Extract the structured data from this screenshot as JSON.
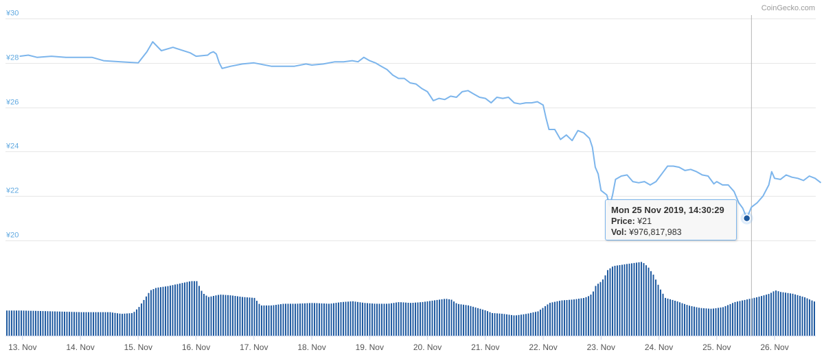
{
  "credit": "CoinGecko.com",
  "colors": {
    "line": "#7cb5ec",
    "volume": "#1f5aa0",
    "grid": "#e6e6e6",
    "y_tick_text": "#5fa8e0",
    "x_tick_text": "#555555",
    "marker": "#1f5aa0"
  },
  "tooltip": {
    "header": "Mon 25 Nov 2019, 14:30:29",
    "price_label": "Price:",
    "price_value": "¥21",
    "vol_label": "Vol:",
    "vol_value": "¥976,817,983"
  },
  "chart_data": {
    "type": "line",
    "title": "",
    "xlabel": "",
    "ylabel": "",
    "y_ticks": [
      "¥20",
      "¥22",
      "¥24",
      "¥26",
      "¥28",
      "¥30"
    ],
    "y_tick_values": [
      20,
      22,
      24,
      26,
      28,
      30
    ],
    "ylim": [
      20,
      30
    ],
    "x_ticks": [
      "13. Nov",
      "14. Nov",
      "15. Nov",
      "16. Nov",
      "17. Nov",
      "18. Nov",
      "19. Nov",
      "20. Nov",
      "21. Nov",
      "22. Nov",
      "23. Nov",
      "24. Nov",
      "25. Nov",
      "26. Nov"
    ],
    "xlim": [
      -0.05,
      13.8
    ],
    "grid": true,
    "price_series": [
      [
        -0.05,
        28.3
      ],
      [
        0.1,
        28.35
      ],
      [
        0.25,
        28.25
      ],
      [
        0.5,
        28.3
      ],
      [
        0.75,
        28.25
      ],
      [
        1.0,
        28.25
      ],
      [
        1.2,
        28.25
      ],
      [
        1.4,
        28.1
      ],
      [
        1.7,
        28.05
      ],
      [
        2.0,
        28.0
      ],
      [
        2.15,
        28.5
      ],
      [
        2.25,
        28.95
      ],
      [
        2.4,
        28.55
      ],
      [
        2.6,
        28.7
      ],
      [
        2.9,
        28.45
      ],
      [
        3.0,
        28.3
      ],
      [
        3.2,
        28.35
      ],
      [
        3.25,
        28.45
      ],
      [
        3.3,
        28.5
      ],
      [
        3.35,
        28.4
      ],
      [
        3.4,
        28.0
      ],
      [
        3.45,
        27.75
      ],
      [
        3.6,
        27.85
      ],
      [
        3.8,
        27.95
      ],
      [
        4.0,
        28.0
      ],
      [
        4.3,
        27.85
      ],
      [
        4.5,
        27.85
      ],
      [
        4.7,
        27.85
      ],
      [
        4.9,
        27.95
      ],
      [
        5.0,
        27.9
      ],
      [
        5.2,
        27.95
      ],
      [
        5.4,
        28.05
      ],
      [
        5.55,
        28.05
      ],
      [
        5.7,
        28.1
      ],
      [
        5.8,
        28.05
      ],
      [
        5.9,
        28.25
      ],
      [
        6.0,
        28.1
      ],
      [
        6.1,
        28.0
      ],
      [
        6.2,
        27.85
      ],
      [
        6.3,
        27.7
      ],
      [
        6.4,
        27.45
      ],
      [
        6.5,
        27.3
      ],
      [
        6.6,
        27.3
      ],
      [
        6.7,
        27.1
      ],
      [
        6.8,
        27.05
      ],
      [
        6.9,
        26.85
      ],
      [
        7.0,
        26.7
      ],
      [
        7.05,
        26.5
      ],
      [
        7.1,
        26.3
      ],
      [
        7.2,
        26.4
      ],
      [
        7.3,
        26.35
      ],
      [
        7.4,
        26.5
      ],
      [
        7.5,
        26.45
      ],
      [
        7.6,
        26.7
      ],
      [
        7.7,
        26.75
      ],
      [
        7.8,
        26.6
      ],
      [
        7.9,
        26.45
      ],
      [
        8.0,
        26.4
      ],
      [
        8.1,
        26.2
      ],
      [
        8.2,
        26.45
      ],
      [
        8.3,
        26.4
      ],
      [
        8.4,
        26.45
      ],
      [
        8.5,
        26.2
      ],
      [
        8.6,
        26.15
      ],
      [
        8.7,
        26.2
      ],
      [
        8.8,
        26.2
      ],
      [
        8.9,
        26.25
      ],
      [
        9.0,
        26.1
      ],
      [
        9.05,
        25.5
      ],
      [
        9.1,
        25.0
      ],
      [
        9.2,
        25.0
      ],
      [
        9.3,
        24.55
      ],
      [
        9.4,
        24.75
      ],
      [
        9.5,
        24.5
      ],
      [
        9.6,
        24.95
      ],
      [
        9.7,
        24.85
      ],
      [
        9.8,
        24.6
      ],
      [
        9.85,
        24.2
      ],
      [
        9.9,
        23.3
      ],
      [
        9.95,
        23.0
      ],
      [
        10.0,
        22.25
      ],
      [
        10.05,
        22.15
      ],
      [
        10.1,
        22.05
      ],
      [
        10.15,
        21.55
      ],
      [
        10.2,
        22.05
      ],
      [
        10.25,
        22.75
      ],
      [
        10.35,
        22.9
      ],
      [
        10.45,
        22.95
      ],
      [
        10.55,
        22.65
      ],
      [
        10.65,
        22.6
      ],
      [
        10.75,
        22.65
      ],
      [
        10.85,
        22.5
      ],
      [
        10.95,
        22.65
      ],
      [
        11.05,
        23.0
      ],
      [
        11.15,
        23.35
      ],
      [
        11.25,
        23.35
      ],
      [
        11.35,
        23.3
      ],
      [
        11.45,
        23.15
      ],
      [
        11.55,
        23.2
      ],
      [
        11.65,
        23.1
      ],
      [
        11.75,
        22.95
      ],
      [
        11.85,
        22.9
      ],
      [
        11.95,
        22.55
      ],
      [
        12.0,
        22.65
      ],
      [
        12.1,
        22.5
      ],
      [
        12.2,
        22.5
      ],
      [
        12.3,
        22.2
      ],
      [
        12.38,
        21.7
      ],
      [
        12.45,
        21.45
      ],
      [
        12.52,
        21.0
      ],
      [
        12.6,
        21.5
      ],
      [
        12.7,
        21.7
      ],
      [
        12.8,
        22.0
      ],
      [
        12.9,
        22.5
      ],
      [
        12.95,
        23.1
      ],
      [
        13.0,
        22.8
      ],
      [
        13.1,
        22.75
      ],
      [
        13.2,
        22.95
      ],
      [
        13.3,
        22.85
      ],
      [
        13.4,
        22.8
      ],
      [
        13.5,
        22.7
      ],
      [
        13.6,
        22.9
      ],
      [
        13.7,
        22.8
      ],
      [
        13.8,
        22.6
      ]
    ],
    "volume_series": [
      [
        -0.05,
        30
      ],
      [
        0.5,
        29
      ],
      [
        1.0,
        28
      ],
      [
        1.5,
        28
      ],
      [
        1.7,
        26
      ],
      [
        1.9,
        27
      ],
      [
        2.0,
        34
      ],
      [
        2.1,
        44
      ],
      [
        2.2,
        54
      ],
      [
        2.3,
        57
      ],
      [
        2.5,
        59
      ],
      [
        2.7,
        62
      ],
      [
        2.9,
        65
      ],
      [
        3.0,
        65
      ],
      [
        3.1,
        51
      ],
      [
        3.2,
        46
      ],
      [
        3.4,
        49
      ],
      [
        3.6,
        48
      ],
      [
        3.8,
        46
      ],
      [
        4.0,
        45
      ],
      [
        4.1,
        36
      ],
      [
        4.3,
        36
      ],
      [
        4.5,
        38
      ],
      [
        4.7,
        38
      ],
      [
        5.0,
        39
      ],
      [
        5.3,
        38
      ],
      [
        5.5,
        40
      ],
      [
        5.7,
        41
      ],
      [
        5.9,
        39
      ],
      [
        6.1,
        38
      ],
      [
        6.3,
        38
      ],
      [
        6.5,
        40
      ],
      [
        6.7,
        39
      ],
      [
        6.9,
        40
      ],
      [
        7.1,
        42
      ],
      [
        7.3,
        44
      ],
      [
        7.4,
        43
      ],
      [
        7.5,
        38
      ],
      [
        7.7,
        36
      ],
      [
        7.9,
        32
      ],
      [
        8.0,
        30
      ],
      [
        8.1,
        27
      ],
      [
        8.3,
        26
      ],
      [
        8.5,
        24
      ],
      [
        8.7,
        26
      ],
      [
        8.9,
        29
      ],
      [
        9.0,
        34
      ],
      [
        9.1,
        39
      ],
      [
        9.3,
        42
      ],
      [
        9.5,
        43
      ],
      [
        9.7,
        45
      ],
      [
        9.8,
        48
      ],
      [
        9.85,
        52
      ],
      [
        9.9,
        60
      ],
      [
        10.0,
        65
      ],
      [
        10.05,
        70
      ],
      [
        10.1,
        78
      ],
      [
        10.2,
        83
      ],
      [
        10.3,
        84
      ],
      [
        10.5,
        86
      ],
      [
        10.7,
        88
      ],
      [
        10.8,
        82
      ],
      [
        10.9,
        72
      ],
      [
        11.0,
        57
      ],
      [
        11.1,
        45
      ],
      [
        11.3,
        41
      ],
      [
        11.5,
        36
      ],
      [
        11.7,
        33
      ],
      [
        11.9,
        32
      ],
      [
        12.1,
        34
      ],
      [
        12.3,
        40
      ],
      [
        12.5,
        43
      ],
      [
        12.7,
        46
      ],
      [
        12.9,
        50
      ],
      [
        13.0,
        54
      ],
      [
        13.1,
        52
      ],
      [
        13.3,
        50
      ],
      [
        13.5,
        46
      ],
      [
        13.7,
        40
      ],
      [
        13.8,
        36
      ]
    ],
    "crosshair_x": 12.6,
    "highlight_point": {
      "x": 12.52,
      "y": 21.0
    }
  }
}
